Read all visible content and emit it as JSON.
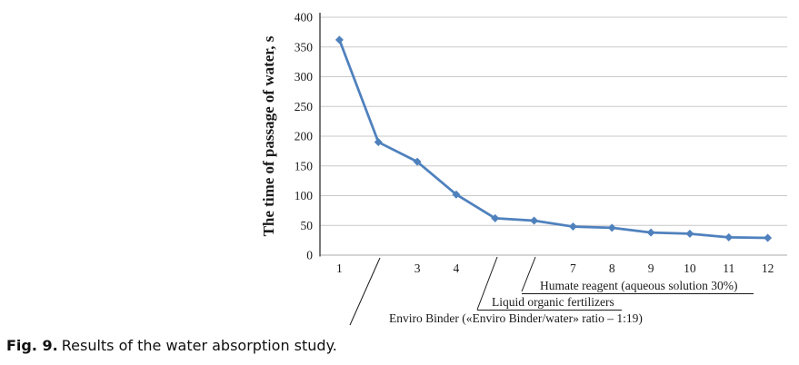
{
  "chart_data": {
    "type": "line",
    "x": [
      1,
      2,
      3,
      4,
      5,
      6,
      7,
      8,
      9,
      10,
      11,
      12
    ],
    "values": [
      362,
      190,
      157,
      102,
      62,
      58,
      48,
      46,
      38,
      36,
      30,
      29
    ],
    "xtick_labels": [
      "1",
      "",
      "3",
      "4",
      "",
      "",
      "7",
      "8",
      "9",
      "10",
      "11",
      "12"
    ],
    "yticks": [
      0,
      50,
      100,
      150,
      200,
      250,
      300,
      350,
      400
    ],
    "ylim": [
      0,
      400
    ],
    "xlabel": "",
    "ylabel": "The time of passage of water, s",
    "grid": "horizontal",
    "legend": "none",
    "line_color": "#4F81BD",
    "marker": "diamond",
    "gridline_color": "#c9c9c9",
    "axis_color": "#404040",
    "annotations": [
      {
        "label": "Humate reagent (aqueous solution 30%)",
        "points_to_x": 6,
        "underlined": true
      },
      {
        "label": "Liquid organic fertilizers",
        "points_to_x": 5,
        "underlined": true
      },
      {
        "label": "Enviro Binder («Enviro Binder/water» ratio – 1:19)",
        "points_to_x": 2,
        "underlined": false
      }
    ]
  },
  "caption": {
    "prefix": "Fig. 9.",
    "text": "Results of the water absorption study."
  }
}
